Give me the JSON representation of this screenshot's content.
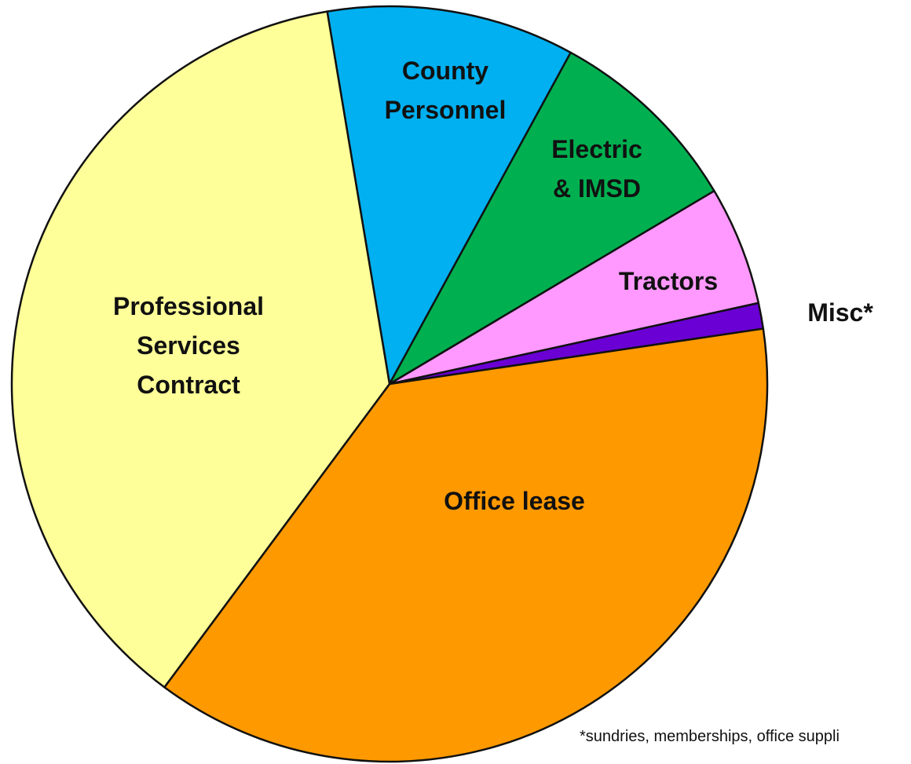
{
  "chart_data": {
    "type": "pie",
    "categories": [
      "County\nPersonnel",
      "Electric\n& IMSD",
      "Tractors",
      "Misc*",
      "Office lease",
      "Professional\nServices\nContract"
    ],
    "values": [
      10.6,
      8.5,
      5.1,
      1.1,
      37.5,
      37.2
    ],
    "colors": [
      "#00b0f0",
      "#00b050",
      "#ff99ff",
      "#6a00d4",
      "#ff9900",
      "#ffff99"
    ],
    "annotations": [
      "*sundries, memberships, office suppli"
    ]
  }
}
